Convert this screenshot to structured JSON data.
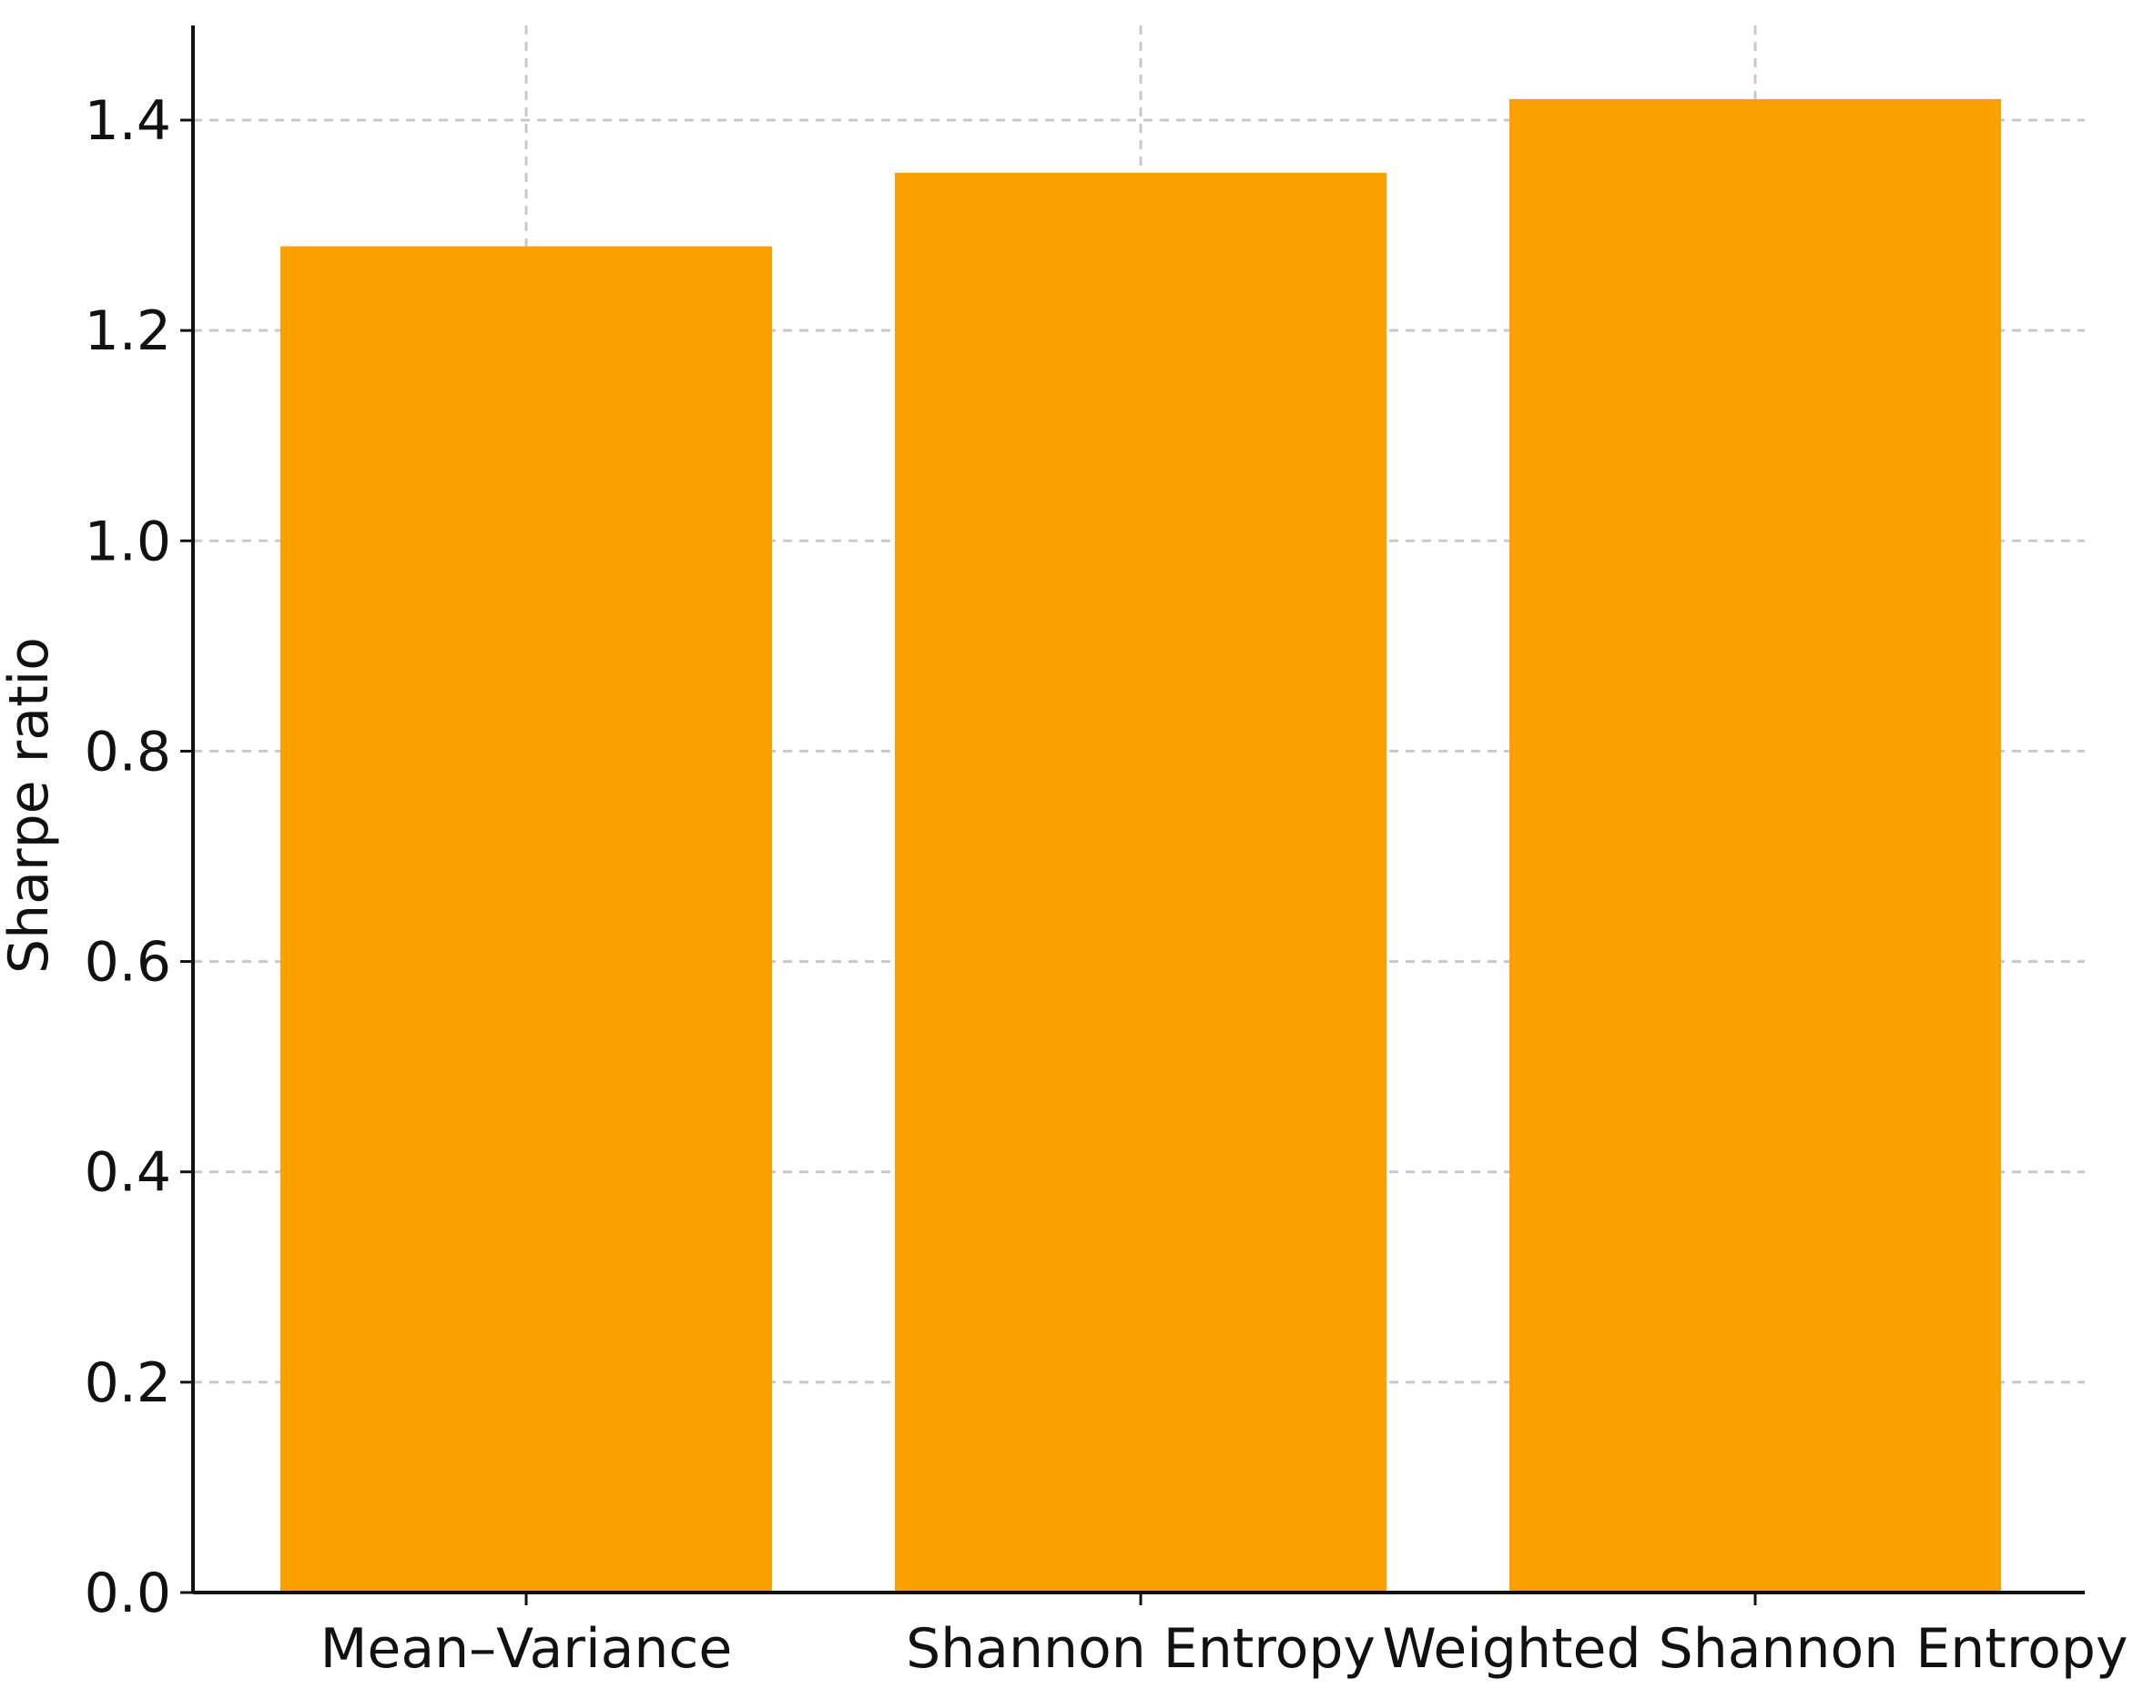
{
  "chart_data": {
    "type": "bar",
    "title": "",
    "xlabel": "",
    "ylabel": "Sharpe ratio",
    "categories": [
      "Mean–Variance",
      "Shannon Entropy",
      "Weighted Shannon Entropy"
    ],
    "values": [
      1.28,
      1.35,
      1.42
    ],
    "ylim": [
      0,
      1.49
    ],
    "yticks": [
      0.0,
      0.2,
      0.4,
      0.6,
      0.8,
      1.0,
      1.2,
      1.4
    ],
    "ytick_labels": [
      "0.0",
      "0.2",
      "0.4",
      "0.6",
      "0.8",
      "1.0",
      "1.2",
      "1.4"
    ],
    "grid": true,
    "bar_color": "#FAA000",
    "grid_color": "#C8C8C8"
  }
}
